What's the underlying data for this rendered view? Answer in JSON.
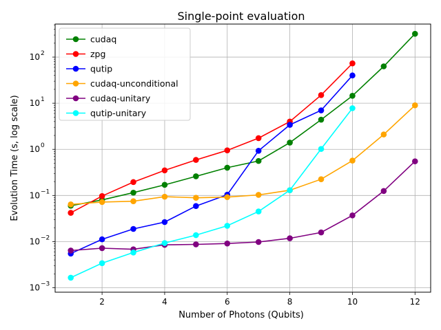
{
  "chart_data": {
    "type": "line",
    "title": "Single-point evaluation",
    "xlabel": "Number of Photons (Qubits)",
    "ylabel": "Evolution Time (s, log scale)",
    "yscale": "log",
    "xlim": [
      0.5,
      12.5
    ],
    "ylim": [
      0.0008,
      520
    ],
    "grid": true,
    "legend_position": "upper-left",
    "x_ticks": [
      2,
      4,
      6,
      8,
      10,
      12
    ],
    "y_ticks": [
      {
        "value": 0.001,
        "base": "10",
        "exp": "−3"
      },
      {
        "value": 0.01,
        "base": "10",
        "exp": "−2"
      },
      {
        "value": 0.1,
        "base": "10",
        "exp": "−1"
      },
      {
        "value": 1,
        "base": "10",
        "exp": "0"
      },
      {
        "value": 10,
        "base": "10",
        "exp": "1"
      },
      {
        "value": 100,
        "base": "10",
        "exp": "2"
      }
    ],
    "series": [
      {
        "name": "cudaq",
        "color": "#008000",
        "x": [
          1,
          2,
          3,
          4,
          5,
          6,
          7,
          8,
          9,
          10,
          11,
          12
        ],
        "y": [
          0.06,
          0.08,
          0.115,
          0.17,
          0.26,
          0.4,
          0.56,
          1.4,
          4.4,
          14.5,
          63,
          320
        ]
      },
      {
        "name": "zpg",
        "color": "#ff0000",
        "x": [
          1,
          2,
          3,
          4,
          5,
          6,
          7,
          8,
          9,
          10
        ],
        "y": [
          0.042,
          0.097,
          0.195,
          0.35,
          0.59,
          0.95,
          1.75,
          4.0,
          15,
          73
        ]
      },
      {
        "name": "qutip",
        "color": "#0000ff",
        "x": [
          1,
          2,
          3,
          4,
          5,
          6,
          7,
          8,
          9,
          10
        ],
        "y": [
          0.0055,
          0.0112,
          0.0188,
          0.0265,
          0.059,
          0.104,
          0.93,
          3.4,
          7.0,
          40
        ]
      },
      {
        "name": "cudaq-unconditional",
        "color": "#ffa500",
        "x": [
          1,
          2,
          3,
          4,
          5,
          6,
          7,
          8,
          9,
          10,
          11,
          12
        ],
        "y": [
          0.064,
          0.072,
          0.075,
          0.094,
          0.089,
          0.092,
          0.103,
          0.13,
          0.225,
          0.57,
          2.1,
          9.0
        ]
      },
      {
        "name": "cudaq-unitary",
        "color": "#800080",
        "x": [
          1,
          2,
          3,
          4,
          5,
          6,
          7,
          8,
          9,
          10,
          11,
          12
        ],
        "y": [
          0.0064,
          0.0072,
          0.0068,
          0.0085,
          0.0087,
          0.0091,
          0.0098,
          0.0118,
          0.0158,
          0.037,
          0.125,
          0.55
        ]
      },
      {
        "name": "qutip-unitary",
        "color": "#00ffff",
        "x": [
          1,
          2,
          3,
          4,
          5,
          6,
          7,
          8,
          9,
          10
        ],
        "y": [
          0.00165,
          0.0034,
          0.0058,
          0.0093,
          0.0138,
          0.022,
          0.045,
          0.13,
          1.02,
          7.8
        ]
      }
    ]
  }
}
